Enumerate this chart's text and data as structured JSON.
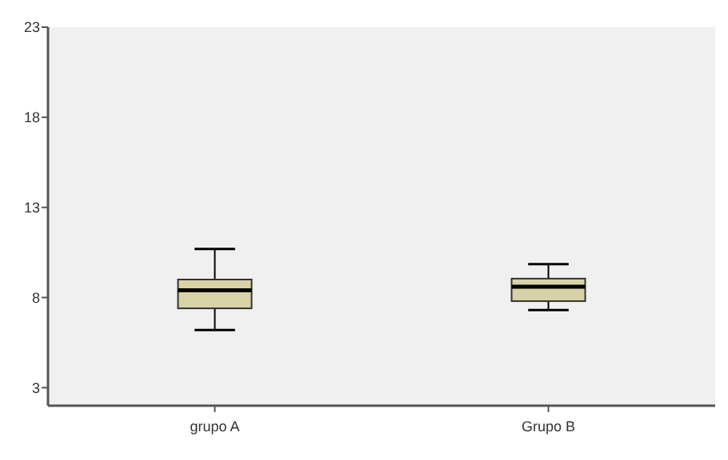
{
  "chart_data": {
    "type": "box",
    "categories": [
      "grupo A",
      "Grupo B"
    ],
    "ylim": [
      2,
      23
    ],
    "yticks": [
      3,
      8,
      13,
      18,
      23
    ],
    "color": "#d8d3a6",
    "boxes": [
      {
        "low": 6.2,
        "q1": 7.4,
        "median": 8.4,
        "q3": 9.0,
        "high": 10.7
      },
      {
        "low": 7.3,
        "q1": 7.8,
        "median": 8.6,
        "q3": 9.05,
        "high": 9.85
      }
    ],
    "grid": false
  }
}
